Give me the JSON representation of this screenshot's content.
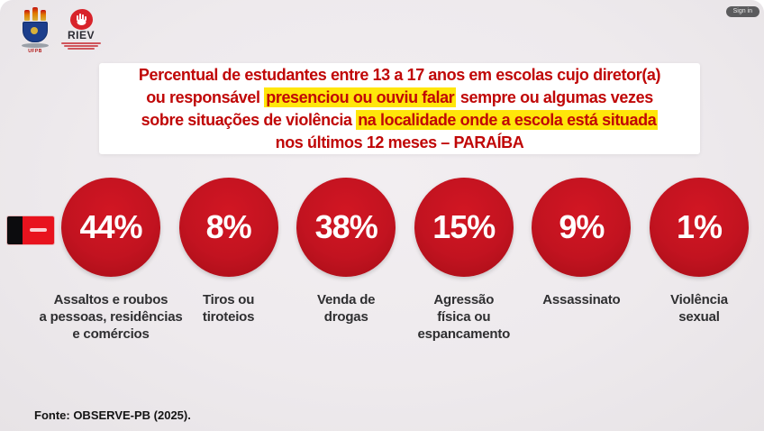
{
  "frame": {
    "signin_label": "Sign in"
  },
  "logos": {
    "ufpb_label": "UFPB",
    "riev_label": "RIEV"
  },
  "title": {
    "lines": [
      {
        "segments": [
          {
            "t": "Percentual de estudantes entre 13 a 17 anos em escolas cujo diretor(a)",
            "hl": false
          }
        ]
      },
      {
        "segments": [
          {
            "t": "ou responsável ",
            "hl": false
          },
          {
            "t": "presenciou ou ouviu falar",
            "hl": true
          },
          {
            "t": " sempre ou algumas vezes",
            "hl": false
          }
        ]
      },
      {
        "segments": [
          {
            "t": "sobre situações de violência ",
            "hl": false
          },
          {
            "t": "na localidade onde a escola está situada",
            "hl": true
          }
        ]
      },
      {
        "segments": [
          {
            "t": "nos últimos 12 meses – PARAÍBA",
            "hl": false
          }
        ]
      }
    ]
  },
  "circles": [
    {
      "value": "44%",
      "label": "Assaltos e roubos\na pessoas, residências\ne comércios"
    },
    {
      "value": "8%",
      "label": "Tiros ou\ntiroteios"
    },
    {
      "value": "38%",
      "label": "Venda de\ndrogas"
    },
    {
      "value": "15%",
      "label": "Agressão\nfísica ou\nespancamento"
    },
    {
      "value": "9%",
      "label": "Assassinato"
    },
    {
      "value": "1%",
      "label": "Violência\nsexual"
    }
  ],
  "footer": {
    "source": "Fonte: OBSERVE-PB (2025)."
  },
  "colors": {
    "circle_red": "#c21320",
    "title_red": "#c00707",
    "highlight_yellow": "#ffe60a",
    "background": "#eeeaed"
  },
  "chart_data": {
    "type": "bar",
    "variant": "percentage-circle-infographic",
    "categories": [
      "Assaltos e roubos a pessoas, residências e comércios",
      "Tiros ou tiroteios",
      "Venda de drogas",
      "Agressão física ou espancamento",
      "Assassinato",
      "Violência sexual"
    ],
    "values": [
      44,
      8,
      38,
      15,
      9,
      1
    ],
    "unit": "%",
    "title": "Percentual de estudantes entre 13 a 17 anos em escolas cujo diretor(a) ou responsável presenciou ou ouviu falar sempre ou algumas vezes sobre situações de violência na localidade onde a escola está situada nos últimos 12 meses – PARAÍBA",
    "region": "PARAÍBA",
    "legend": false,
    "grid": false,
    "source": "Fonte: OBSERVE-PB (2025)."
  }
}
